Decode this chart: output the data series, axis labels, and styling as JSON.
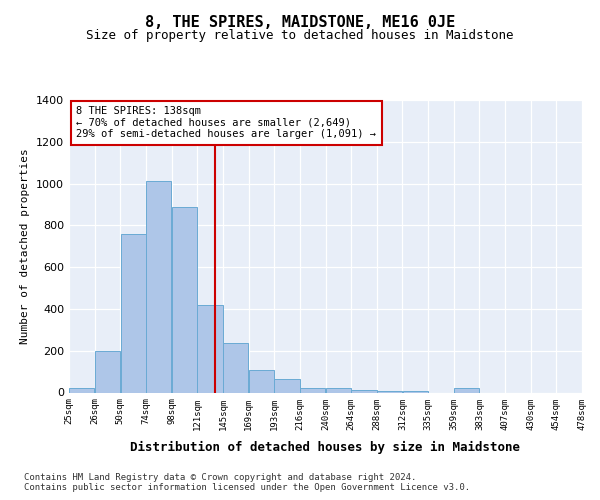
{
  "title": "8, THE SPIRES, MAIDSTONE, ME16 0JE",
  "subtitle": "Size of property relative to detached houses in Maidstone",
  "xlabel": "Distribution of detached houses by size in Maidstone",
  "ylabel": "Number of detached properties",
  "tick_labels": [
    "25sqm",
    "26sqm",
    "50sqm",
    "74sqm",
    "98sqm",
    "121sqm",
    "145sqm",
    "169sqm",
    "193sqm",
    "216sqm",
    "240sqm",
    "264sqm",
    "288sqm",
    "312sqm",
    "335sqm",
    "359sqm",
    "383sqm",
    "407sqm",
    "430sqm",
    "454sqm",
    "478sqm"
  ],
  "bar_values": [
    20,
    200,
    760,
    1010,
    890,
    420,
    235,
    110,
    65,
    20,
    20,
    10,
    5,
    5,
    0,
    20,
    0,
    0,
    0,
    0
  ],
  "bar_color": "#aec6e8",
  "bar_edge_color": "#6aaad4",
  "vline_x": 138,
  "vline_color": "#cc0000",
  "annotation_text": "8 THE SPIRES: 138sqm\n← 70% of detached houses are smaller (2,649)\n29% of semi-detached houses are larger (1,091) →",
  "annotation_box_color": "#cc0000",
  "ylim": [
    0,
    1400
  ],
  "yticks": [
    0,
    200,
    400,
    600,
    800,
    1000,
    1200,
    1400
  ],
  "background_color": "#e8eef8",
  "footer_text": "Contains HM Land Registry data © Crown copyright and database right 2024.\nContains public sector information licensed under the Open Government Licence v3.0.",
  "bin_edges": [
    1,
    25,
    49,
    73,
    97,
    121,
    145,
    169,
    193,
    217,
    241,
    265,
    289,
    313,
    337,
    361,
    385,
    409,
    433,
    457,
    481
  ]
}
